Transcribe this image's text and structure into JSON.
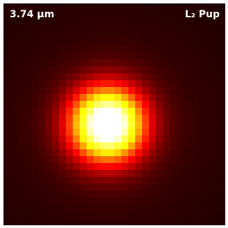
{
  "image": {
    "wavelength_label": "3.74 µm",
    "target_label": "L₂ Pup"
  }
}
